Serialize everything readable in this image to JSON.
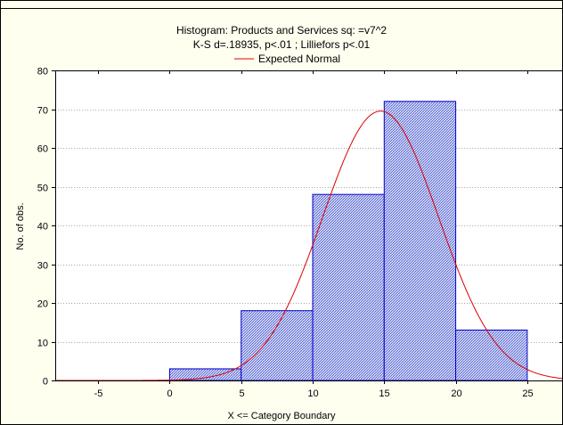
{
  "chart_data": {
    "type": "bar",
    "title": "Histogram: Products and Services sq: =v7^2",
    "subtitle": "K-S d=.18935, p<.01 ; Lilliefors p<.01",
    "legend": {
      "entries": [
        "Expected Normal"
      ],
      "placement": "top-center"
    },
    "xlabel": "X <= Category Boundary",
    "ylabel": "No. of obs.",
    "xlim": [
      -8,
      27.5
    ],
    "ylim": [
      0,
      80
    ],
    "xticks": [
      -5,
      0,
      5,
      10,
      15,
      20,
      25
    ],
    "yticks": [
      0,
      10,
      20,
      30,
      40,
      50,
      60,
      70,
      80
    ],
    "grid": true,
    "bins": [
      {
        "x0": 0,
        "x1": 5,
        "count": 3
      },
      {
        "x0": 5,
        "x1": 10,
        "count": 18
      },
      {
        "x0": 10,
        "x1": 15,
        "count": 48
      },
      {
        "x0": 15,
        "x1": 20,
        "count": 72
      },
      {
        "x0": 20,
        "x1": 25,
        "count": 13
      }
    ],
    "expected_normal": {
      "mean": 14.75,
      "peak": 69.5,
      "sd": 4.05
    },
    "colors": {
      "bar_fill": "#d8dcf4",
      "bar_stroke": "#0000cc",
      "curve": "#dd0000",
      "plot_background": "#ffffff",
      "page_background": "#fffff0"
    }
  }
}
